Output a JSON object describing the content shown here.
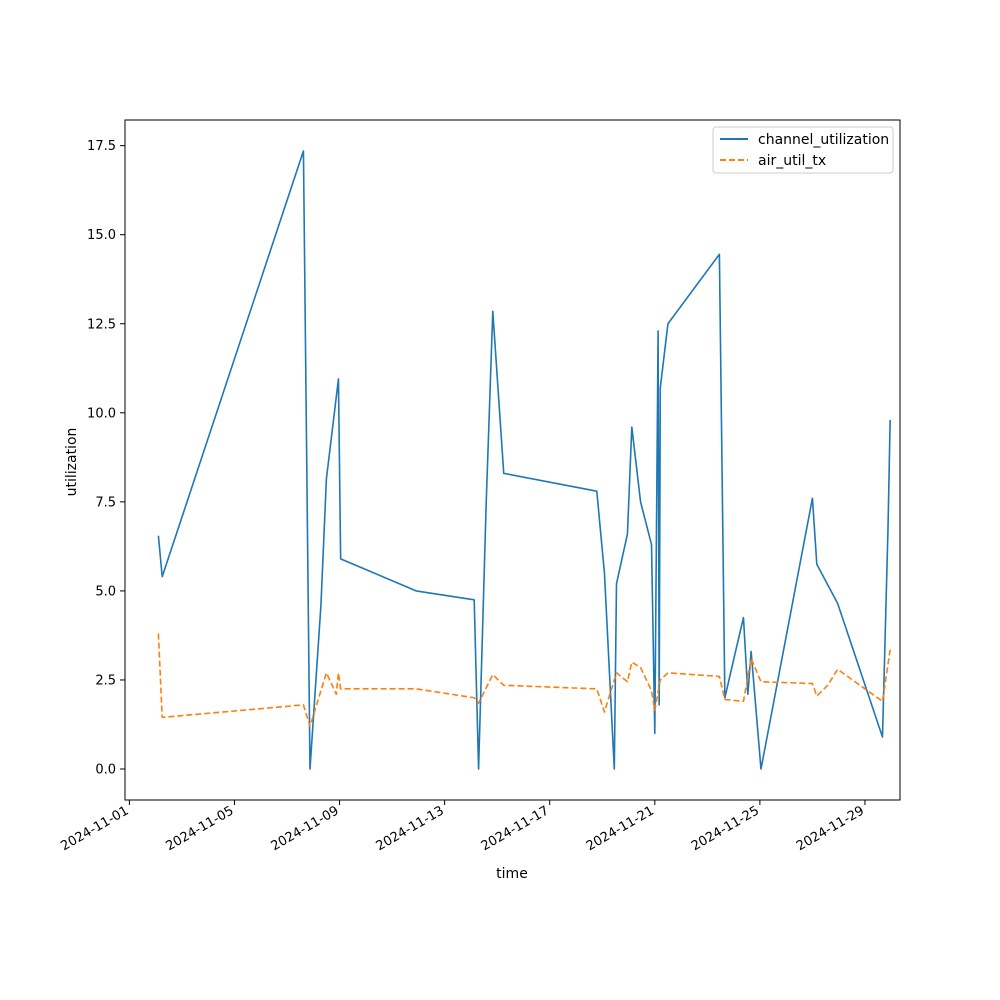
{
  "chart_data": {
    "type": "line",
    "xlabel": "time",
    "ylabel": "utilization",
    "x_type": "datetime",
    "xlim": [
      "2024-10-31T20:00",
      "2024-11-30T08:00"
    ],
    "ylim": [
      -0.87,
      18.22
    ],
    "x_ticks": [
      "2024-11-01",
      "2024-11-05",
      "2024-11-09",
      "2024-11-13",
      "2024-11-17",
      "2024-11-21",
      "2024-11-25",
      "2024-11-29"
    ],
    "y_ticks": [
      "0.0",
      "2.5",
      "5.0",
      "7.5",
      "10.0",
      "12.5",
      "15.0",
      "17.5"
    ],
    "grid": false,
    "legend": {
      "position": "top-right"
    },
    "series": [
      {
        "name": "channel_utilization",
        "color": "#1f77b4",
        "dash": "solid",
        "points": [
          [
            "2024-11-02T02:30",
            6.55
          ],
          [
            "2024-11-02T06:00",
            5.4
          ],
          [
            "2024-11-07T15:00",
            17.35
          ],
          [
            "2024-11-07T21:00",
            0.0
          ],
          [
            "2024-11-08T07:00",
            4.6
          ],
          [
            "2024-11-08T12:00",
            8.15
          ],
          [
            "2024-11-08T23:00",
            10.95
          ],
          [
            "2024-11-09T01:00",
            5.9
          ],
          [
            "2024-11-11T22:00",
            5.0
          ],
          [
            "2024-11-14T03:00",
            4.75
          ],
          [
            "2024-11-14T07:00",
            0.0
          ],
          [
            "2024-11-14T14:00",
            7.5
          ],
          [
            "2024-11-14T20:00",
            12.85
          ],
          [
            "2024-11-15T06:00",
            8.3
          ],
          [
            "2024-11-18T19:00",
            7.8
          ],
          [
            "2024-11-19T02:00",
            5.5
          ],
          [
            "2024-11-19T11:00",
            0.0
          ],
          [
            "2024-11-19T13:00",
            5.2
          ],
          [
            "2024-11-19T23:00",
            6.6
          ],
          [
            "2024-11-20T03:00",
            9.6
          ],
          [
            "2024-11-20T11:00",
            7.5
          ],
          [
            "2024-11-20T21:00",
            6.3
          ],
          [
            "2024-11-21T00:00",
            1.0
          ],
          [
            "2024-11-21T03:00",
            12.3
          ],
          [
            "2024-11-21T04:00",
            1.8
          ],
          [
            "2024-11-21T05:00",
            10.7
          ],
          [
            "2024-11-21T12:00",
            12.5
          ],
          [
            "2024-11-23T11:00",
            14.45
          ],
          [
            "2024-11-23T16:00",
            2.0
          ],
          [
            "2024-11-24T01:00",
            3.2
          ],
          [
            "2024-11-24T09:00",
            4.25
          ],
          [
            "2024-11-24T13:00",
            2.1
          ],
          [
            "2024-11-24T16:00",
            3.3
          ],
          [
            "2024-11-25T01:00",
            0.0
          ],
          [
            "2024-11-27T00:00",
            7.6
          ],
          [
            "2024-11-27T04:00",
            5.75
          ],
          [
            "2024-11-27T23:00",
            4.65
          ],
          [
            "2024-11-29T16:00",
            0.9
          ],
          [
            "2024-11-29T21:00",
            6.7
          ],
          [
            "2024-11-29T23:00",
            9.8
          ]
        ]
      },
      {
        "name": "air_util_tx",
        "color": "#ff7f0e",
        "dash": "dashed",
        "points": [
          [
            "2024-11-02T02:30",
            3.8
          ],
          [
            "2024-11-02T06:00",
            1.45
          ],
          [
            "2024-11-07T15:00",
            1.8
          ],
          [
            "2024-11-07T21:00",
            1.2
          ],
          [
            "2024-11-08T12:00",
            2.7
          ],
          [
            "2024-11-08T21:00",
            2.1
          ],
          [
            "2024-11-08T23:00",
            2.7
          ],
          [
            "2024-11-09T01:00",
            2.25
          ],
          [
            "2024-11-11T22:00",
            2.25
          ],
          [
            "2024-11-14T03:00",
            2.0
          ],
          [
            "2024-11-14T07:00",
            1.85
          ],
          [
            "2024-11-14T20:00",
            2.65
          ],
          [
            "2024-11-15T06:00",
            2.35
          ],
          [
            "2024-11-18T19:00",
            2.25
          ],
          [
            "2024-11-19T02:00",
            1.6
          ],
          [
            "2024-11-19T13:00",
            2.7
          ],
          [
            "2024-11-19T23:00",
            2.45
          ],
          [
            "2024-11-20T03:00",
            3.0
          ],
          [
            "2024-11-20T11:00",
            2.85
          ],
          [
            "2024-11-20T21:00",
            2.2
          ],
          [
            "2024-11-21T00:00",
            1.65
          ],
          [
            "2024-11-21T05:00",
            2.5
          ],
          [
            "2024-11-21T12:00",
            2.7
          ],
          [
            "2024-11-23T11:00",
            2.6
          ],
          [
            "2024-11-23T16:00",
            1.95
          ],
          [
            "2024-11-24T09:00",
            1.9
          ],
          [
            "2024-11-24T16:00",
            3.1
          ],
          [
            "2024-11-25T01:00",
            2.45
          ],
          [
            "2024-11-27T00:00",
            2.4
          ],
          [
            "2024-11-27T04:00",
            2.05
          ],
          [
            "2024-11-27T14:00",
            2.35
          ],
          [
            "2024-11-27T23:00",
            2.8
          ],
          [
            "2024-11-29T16:00",
            1.9
          ],
          [
            "2024-11-29T23:00",
            3.35
          ]
        ]
      }
    ]
  }
}
